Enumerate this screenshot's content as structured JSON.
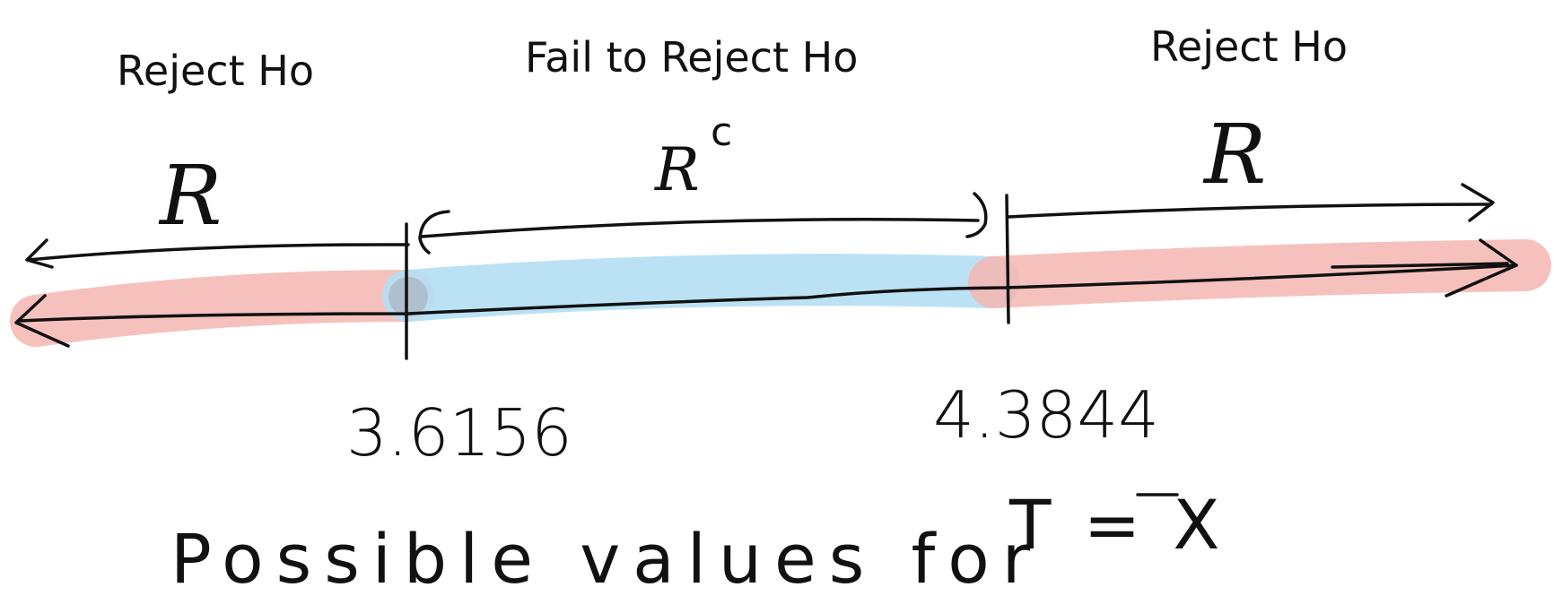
{
  "regions": {
    "left": {
      "decision": "Reject Ho",
      "symbol": "R",
      "highlight_color": "#f4b6b0"
    },
    "middle": {
      "decision": "Fail to Reject Ho",
      "symbol": "R",
      "superscript": "c",
      "highlight_color": "#b3dff3"
    },
    "right": {
      "decision": "Reject Ho",
      "symbol": "R",
      "highlight_color": "#f4b6b0"
    }
  },
  "critical_values": {
    "lower": "3.6156",
    "upper": "4.3844"
  },
  "caption": {
    "prefix": "Possible values for",
    "statistic": "T = X"
  }
}
